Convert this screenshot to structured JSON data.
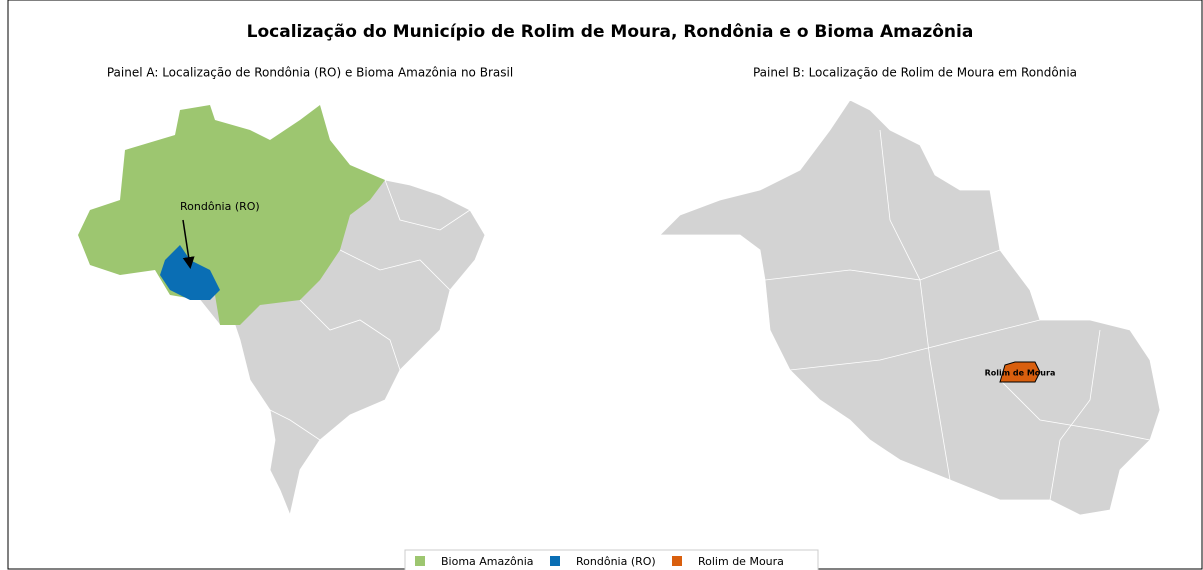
{
  "title": "Localização do Município de Rolim de Moura, Rondônia e o Bioma Amazônia",
  "panel_a": {
    "title": "Painel A: Localização de Rondônia (RO) e Bioma Amazônia no Brasil",
    "annotation": "Rondônia (RO)"
  },
  "panel_b": {
    "title": "Painel B: Localização de Rolim de Moura em Rondônia",
    "annotation": "Rolim de Moura"
  },
  "legend": [
    {
      "label": "Bioma Amazônia",
      "color": "#9dc670"
    },
    {
      "label": "Rondônia (RO)",
      "color": "#0a6eb4"
    },
    {
      "label": "Rolim de Moura",
      "color": "#d95f0e"
    }
  ]
}
